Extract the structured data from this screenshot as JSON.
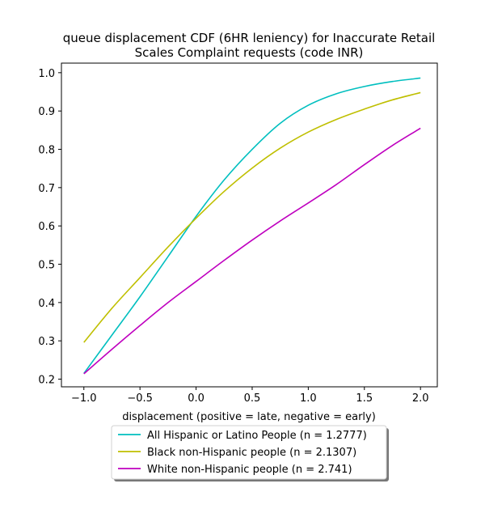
{
  "chart_data": {
    "type": "line",
    "title_line1": "queue displacement CDF (6HR leniency) for Inaccurate Retail",
    "title_line2": "Scales Complaint  requests (code INR)",
    "xlabel": "displacement (positive = late, negative = early)",
    "ylabel": "",
    "xlim": [
      -1.2,
      2.15
    ],
    "ylim": [
      0.18,
      1.025
    ],
    "xticks": [
      -1.0,
      -0.5,
      0.0,
      0.5,
      1.0,
      1.5,
      2.0
    ],
    "xtick_labels": [
      "−1.0",
      "−0.5",
      "0.0",
      "0.5",
      "1.0",
      "1.5",
      "2.0"
    ],
    "yticks": [
      0.2,
      0.3,
      0.4,
      0.5,
      0.6,
      0.7,
      0.8,
      0.9,
      1.0
    ],
    "ytick_labels": [
      "0.2",
      "0.3",
      "0.4",
      "0.5",
      "0.6",
      "0.7",
      "0.8",
      "0.9",
      "1.0"
    ],
    "grid": false,
    "legend_position": "below plot, centered",
    "x": [
      -1.0,
      -0.75,
      -0.5,
      -0.25,
      0.0,
      0.25,
      0.5,
      0.75,
      1.0,
      1.25,
      1.5,
      1.75,
      2.0
    ],
    "series": [
      {
        "name": "All Hispanic or Latino People (n = 1.2777)",
        "color": "#00bfbf",
        "values": [
          0.215,
          0.315,
          0.415,
          0.52,
          0.625,
          0.72,
          0.8,
          0.868,
          0.915,
          0.945,
          0.964,
          0.977,
          0.986
        ]
      },
      {
        "name": "Black non-Hispanic people (n = 2.1307)",
        "color": "#bfbf00",
        "values": [
          0.296,
          0.385,
          0.465,
          0.545,
          0.62,
          0.69,
          0.751,
          0.803,
          0.845,
          0.878,
          0.905,
          0.929,
          0.948
        ]
      },
      {
        "name": "White non-Hispanic people (n = 2.741)",
        "color": "#bf00bf",
        "values": [
          0.214,
          0.278,
          0.34,
          0.4,
          0.455,
          0.51,
          0.563,
          0.613,
          0.66,
          0.708,
          0.76,
          0.81,
          0.855
        ]
      }
    ]
  }
}
